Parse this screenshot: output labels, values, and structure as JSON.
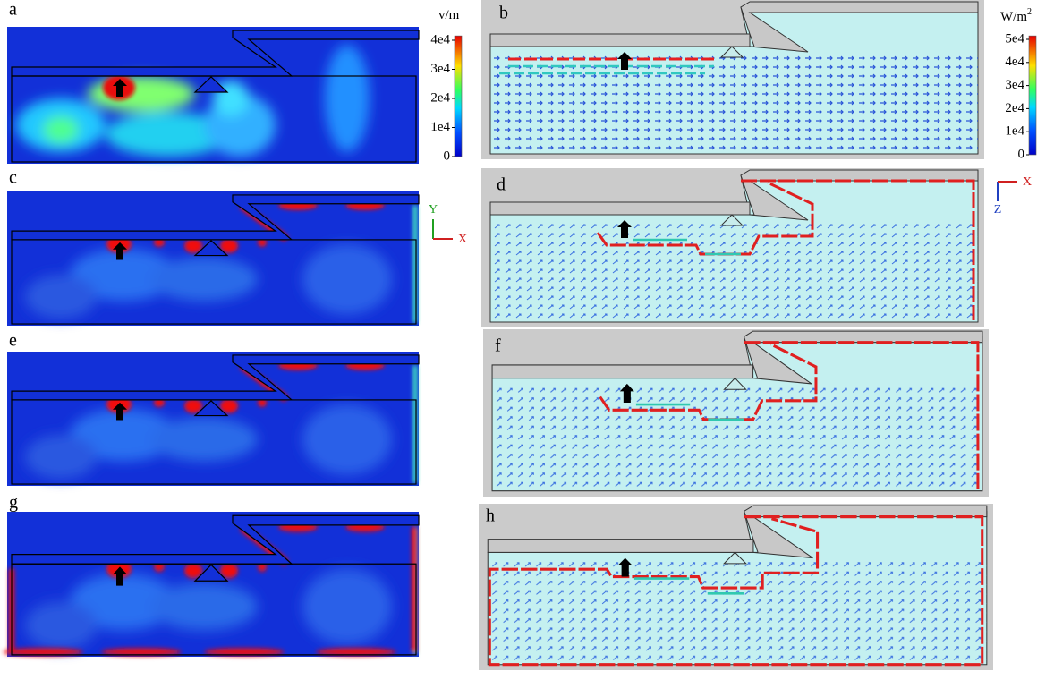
{
  "panels": [
    {
      "label": "a"
    },
    {
      "label": "b"
    },
    {
      "label": "c"
    },
    {
      "label": "d"
    },
    {
      "label": "e"
    },
    {
      "label": "f"
    },
    {
      "label": "g"
    },
    {
      "label": "h"
    }
  ],
  "colorbars": [
    {
      "unit": "v/m",
      "lim": [
        0,
        41500
      ],
      "ticks": [
        {
          "value": 40000,
          "label": "4e4"
        },
        {
          "value": 30000,
          "label": "3e4"
        },
        {
          "value": 20000,
          "label": "2e4"
        },
        {
          "value": 10000,
          "label": "1e4"
        },
        0
      ]
    },
    {
      "unit": "W/m",
      "unit_sup": "2",
      "lim": [
        0,
        51500
      ],
      "ticks": [
        {
          "value": 50000,
          "label": "5e4"
        },
        {
          "value": 40000,
          "label": "4e4"
        },
        {
          "value": 30000,
          "label": "3e4"
        },
        {
          "value": 20000,
          "label": "2e4"
        },
        {
          "value": 10000,
          "label": "1e4"
        },
        0
      ]
    }
  ],
  "axes": [
    {
      "vertical": "Y",
      "horizontal": "X"
    },
    {
      "vertical": "Z",
      "horizontal": "X"
    }
  ]
}
